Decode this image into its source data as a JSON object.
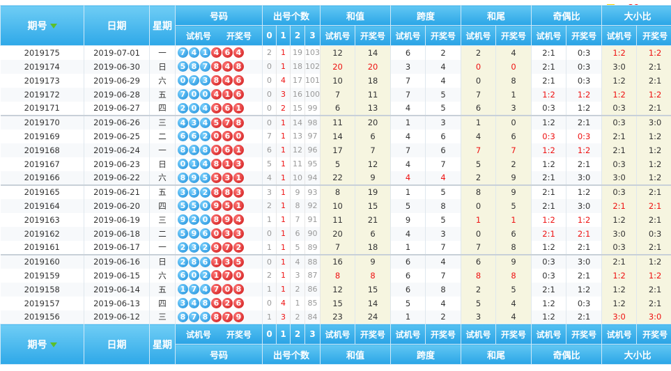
{
  "logo": "cz89.com",
  "header": {
    "period": "期号",
    "date": "日期",
    "weekday": "星期",
    "numbers": "号码",
    "count": "出号个数",
    "sum": "和值",
    "span": "跨度",
    "tail": "和尾",
    "odd_even": "奇偶比",
    "big_small": "大小比",
    "trial": "试机号",
    "draw": "开奖号",
    "count_cols": [
      "0",
      "1",
      "2",
      "3"
    ]
  },
  "rows": [
    {
      "period": "2019175",
      "date": "2019-07-01",
      "wd": "一",
      "trial": [
        "7",
        "4",
        "1"
      ],
      "draw": [
        "4",
        "6",
        "4"
      ],
      "cnt": [
        "2",
        "1",
        "19",
        "103"
      ],
      "sum_t": "12",
      "sum_d": "14",
      "span_t": "6",
      "span_d": "2",
      "tail_t": "2",
      "tail_d": "4",
      "oe_t": "2:1",
      "oe_d": "0:3",
      "bs_t": "1:2",
      "bs_d": "1:2",
      "red": [
        "bs_t",
        "bs_d"
      ]
    },
    {
      "period": "2019174",
      "date": "2019-06-30",
      "wd": "日",
      "trial": [
        "5",
        "8",
        "7"
      ],
      "draw": [
        "8",
        "4",
        "8"
      ],
      "cnt": [
        "0",
        "1",
        "18",
        "102"
      ],
      "sum_t": "20",
      "sum_d": "20",
      "span_t": "3",
      "span_d": "4",
      "tail_t": "0",
      "tail_d": "0",
      "oe_t": "2:1",
      "oe_d": "0:3",
      "bs_t": "3:0",
      "bs_d": "2:1",
      "red": [
        "sum_t",
        "sum_d",
        "tail_t",
        "tail_d"
      ]
    },
    {
      "period": "2019173",
      "date": "2019-06-29",
      "wd": "六",
      "trial": [
        "0",
        "7",
        "3"
      ],
      "draw": [
        "8",
        "4",
        "6"
      ],
      "cnt": [
        "0",
        "4",
        "17",
        "101"
      ],
      "sum_t": "10",
      "sum_d": "18",
      "span_t": "7",
      "span_d": "4",
      "tail_t": "0",
      "tail_d": "8",
      "oe_t": "2:1",
      "oe_d": "0:3",
      "bs_t": "1:2",
      "bs_d": "2:1",
      "red": []
    },
    {
      "period": "2019172",
      "date": "2019-06-28",
      "wd": "五",
      "trial": [
        "7",
        "0",
        "0"
      ],
      "draw": [
        "4",
        "1",
        "6"
      ],
      "cnt": [
        "0",
        "3",
        "16",
        "100"
      ],
      "sum_t": "7",
      "sum_d": "11",
      "span_t": "7",
      "span_d": "5",
      "tail_t": "7",
      "tail_d": "1",
      "oe_t": "1:2",
      "oe_d": "1:2",
      "bs_t": "1:2",
      "bs_d": "1:2",
      "red": [
        "oe_t",
        "oe_d",
        "bs_t",
        "bs_d"
      ]
    },
    {
      "period": "2019171",
      "date": "2019-06-27",
      "wd": "四",
      "trial": [
        "2",
        "0",
        "4"
      ],
      "draw": [
        "6",
        "6",
        "1"
      ],
      "cnt": [
        "0",
        "2",
        "15",
        "99"
      ],
      "sum_t": "6",
      "sum_d": "13",
      "span_t": "4",
      "span_d": "5",
      "tail_t": "6",
      "tail_d": "3",
      "oe_t": "0:3",
      "oe_d": "1:2",
      "bs_t": "0:3",
      "bs_d": "2:1",
      "red": [],
      "end": true
    },
    {
      "period": "2019170",
      "date": "2019-06-26",
      "wd": "三",
      "trial": [
        "4",
        "3",
        "4"
      ],
      "draw": [
        "5",
        "7",
        "8"
      ],
      "cnt": [
        "0",
        "1",
        "14",
        "98"
      ],
      "sum_t": "11",
      "sum_d": "20",
      "span_t": "1",
      "span_d": "3",
      "tail_t": "1",
      "tail_d": "0",
      "oe_t": "1:2",
      "oe_d": "2:1",
      "bs_t": "0:3",
      "bs_d": "3:0",
      "red": []
    },
    {
      "period": "2019169",
      "date": "2019-06-25",
      "wd": "二",
      "trial": [
        "6",
        "6",
        "2"
      ],
      "draw": [
        "0",
        "6",
        "0"
      ],
      "cnt": [
        "7",
        "1",
        "13",
        "97"
      ],
      "sum_t": "14",
      "sum_d": "6",
      "span_t": "4",
      "span_d": "6",
      "tail_t": "4",
      "tail_d": "6",
      "oe_t": "0:3",
      "oe_d": "0:3",
      "bs_t": "2:1",
      "bs_d": "1:2",
      "red": [
        "oe_t",
        "oe_d"
      ]
    },
    {
      "period": "2019168",
      "date": "2019-06-24",
      "wd": "一",
      "trial": [
        "8",
        "1",
        "8"
      ],
      "draw": [
        "0",
        "6",
        "1"
      ],
      "cnt": [
        "6",
        "1",
        "12",
        "96"
      ],
      "sum_t": "17",
      "sum_d": "7",
      "span_t": "7",
      "span_d": "6",
      "tail_t": "7",
      "tail_d": "7",
      "oe_t": "1:2",
      "oe_d": "1:2",
      "bs_t": "2:1",
      "bs_d": "1:2",
      "red": [
        "tail_t",
        "tail_d",
        "oe_t",
        "oe_d"
      ]
    },
    {
      "period": "2019167",
      "date": "2019-06-23",
      "wd": "日",
      "trial": [
        "0",
        "1",
        "4"
      ],
      "draw": [
        "8",
        "1",
        "3"
      ],
      "cnt": [
        "5",
        "1",
        "11",
        "95"
      ],
      "sum_t": "5",
      "sum_d": "12",
      "span_t": "4",
      "span_d": "7",
      "tail_t": "5",
      "tail_d": "2",
      "oe_t": "1:2",
      "oe_d": "2:1",
      "bs_t": "0:3",
      "bs_d": "1:2",
      "red": []
    },
    {
      "period": "2019166",
      "date": "2019-06-22",
      "wd": "六",
      "trial": [
        "8",
        "9",
        "5"
      ],
      "draw": [
        "5",
        "3",
        "1"
      ],
      "cnt": [
        "4",
        "1",
        "10",
        "94"
      ],
      "sum_t": "22",
      "sum_d": "9",
      "span_t": "4",
      "span_d": "4",
      "tail_t": "2",
      "tail_d": "9",
      "oe_t": "2:1",
      "oe_d": "3:0",
      "bs_t": "3:0",
      "bs_d": "1:2",
      "red": [
        "span_t",
        "span_d"
      ],
      "end": true
    },
    {
      "period": "2019165",
      "date": "2019-06-21",
      "wd": "五",
      "trial": [
        "3",
        "3",
        "2"
      ],
      "draw": [
        "8",
        "8",
        "3"
      ],
      "cnt": [
        "3",
        "1",
        "9",
        "93"
      ],
      "sum_t": "8",
      "sum_d": "19",
      "span_t": "1",
      "span_d": "5",
      "tail_t": "8",
      "tail_d": "9",
      "oe_t": "2:1",
      "oe_d": "1:2",
      "bs_t": "0:3",
      "bs_d": "2:1",
      "red": []
    },
    {
      "period": "2019164",
      "date": "2019-06-20",
      "wd": "四",
      "trial": [
        "5",
        "5",
        "0"
      ],
      "draw": [
        "9",
        "5",
        "1"
      ],
      "cnt": [
        "2",
        "1",
        "8",
        "92"
      ],
      "sum_t": "10",
      "sum_d": "15",
      "span_t": "5",
      "span_d": "8",
      "tail_t": "0",
      "tail_d": "5",
      "oe_t": "2:1",
      "oe_d": "3:0",
      "bs_t": "2:1",
      "bs_d": "2:1",
      "red": [
        "bs_t",
        "bs_d"
      ]
    },
    {
      "period": "2019163",
      "date": "2019-06-19",
      "wd": "三",
      "trial": [
        "9",
        "2",
        "0"
      ],
      "draw": [
        "8",
        "9",
        "4"
      ],
      "cnt": [
        "1",
        "1",
        "7",
        "91"
      ],
      "sum_t": "11",
      "sum_d": "21",
      "span_t": "9",
      "span_d": "5",
      "tail_t": "1",
      "tail_d": "1",
      "oe_t": "1:2",
      "oe_d": "1:2",
      "bs_t": "1:2",
      "bs_d": "2:1",
      "red": [
        "tail_t",
        "tail_d",
        "oe_t",
        "oe_d"
      ]
    },
    {
      "period": "2019162",
      "date": "2019-06-18",
      "wd": "二",
      "trial": [
        "5",
        "9",
        "6"
      ],
      "draw": [
        "0",
        "3",
        "3"
      ],
      "cnt": [
        "0",
        "1",
        "6",
        "90"
      ],
      "sum_t": "20",
      "sum_d": "6",
      "span_t": "4",
      "span_d": "3",
      "tail_t": "0",
      "tail_d": "6",
      "oe_t": "2:1",
      "oe_d": "2:1",
      "bs_t": "3:0",
      "bs_d": "0:3",
      "red": [
        "oe_t",
        "oe_d"
      ]
    },
    {
      "period": "2019161",
      "date": "2019-06-17",
      "wd": "一",
      "trial": [
        "2",
        "3",
        "2"
      ],
      "draw": [
        "9",
        "7",
        "2"
      ],
      "cnt": [
        "1",
        "1",
        "5",
        "89"
      ],
      "sum_t": "7",
      "sum_d": "18",
      "span_t": "1",
      "span_d": "7",
      "tail_t": "7",
      "tail_d": "8",
      "oe_t": "1:2",
      "oe_d": "2:1",
      "bs_t": "0:3",
      "bs_d": "2:1",
      "red": [],
      "end": true
    },
    {
      "period": "2019160",
      "date": "2019-06-16",
      "wd": "日",
      "trial": [
        "2",
        "8",
        "6"
      ],
      "draw": [
        "1",
        "3",
        "5"
      ],
      "cnt": [
        "0",
        "1",
        "4",
        "88"
      ],
      "sum_t": "16",
      "sum_d": "9",
      "span_t": "6",
      "span_d": "4",
      "tail_t": "6",
      "tail_d": "9",
      "oe_t": "0:3",
      "oe_d": "3:0",
      "bs_t": "2:1",
      "bs_d": "1:2",
      "red": []
    },
    {
      "period": "2019159",
      "date": "2019-06-15",
      "wd": "六",
      "trial": [
        "6",
        "0",
        "2"
      ],
      "draw": [
        "1",
        "7",
        "0"
      ],
      "cnt": [
        "2",
        "1",
        "3",
        "87"
      ],
      "sum_t": "8",
      "sum_d": "8",
      "span_t": "6",
      "span_d": "7",
      "tail_t": "8",
      "tail_d": "8",
      "oe_t": "0:3",
      "oe_d": "2:1",
      "bs_t": "1:2",
      "bs_d": "1:2",
      "red": [
        "sum_t",
        "sum_d",
        "tail_t",
        "tail_d",
        "bs_t",
        "bs_d"
      ]
    },
    {
      "period": "2019158",
      "date": "2019-06-14",
      "wd": "五",
      "trial": [
        "1",
        "7",
        "4"
      ],
      "draw": [
        "7",
        "0",
        "8"
      ],
      "cnt": [
        "1",
        "1",
        "2",
        "86"
      ],
      "sum_t": "12",
      "sum_d": "15",
      "span_t": "6",
      "span_d": "8",
      "tail_t": "2",
      "tail_d": "5",
      "oe_t": "2:1",
      "oe_d": "1:2",
      "bs_t": "1:2",
      "bs_d": "2:1",
      "red": []
    },
    {
      "period": "2019157",
      "date": "2019-06-13",
      "wd": "四",
      "trial": [
        "3",
        "4",
        "8"
      ],
      "draw": [
        "6",
        "2",
        "6"
      ],
      "cnt": [
        "0",
        "4",
        "1",
        "85"
      ],
      "sum_t": "15",
      "sum_d": "14",
      "span_t": "5",
      "span_d": "4",
      "tail_t": "5",
      "tail_d": "4",
      "oe_t": "1:2",
      "oe_d": "0:3",
      "bs_t": "1:2",
      "bs_d": "2:1",
      "red": []
    },
    {
      "period": "2019156",
      "date": "2019-06-12",
      "wd": "三",
      "trial": [
        "8",
        "7",
        "8"
      ],
      "draw": [
        "8",
        "7",
        "9"
      ],
      "cnt": [
        "1",
        "3",
        "2",
        "84"
      ],
      "sum_t": "23",
      "sum_d": "24",
      "span_t": "1",
      "span_d": "2",
      "tail_t": "3",
      "tail_d": "4",
      "oe_t": "1:2",
      "oe_d": "2:1",
      "bs_t": "3:0",
      "bs_d": "3:0",
      "red": [
        "bs_t",
        "bs_d"
      ]
    }
  ]
}
